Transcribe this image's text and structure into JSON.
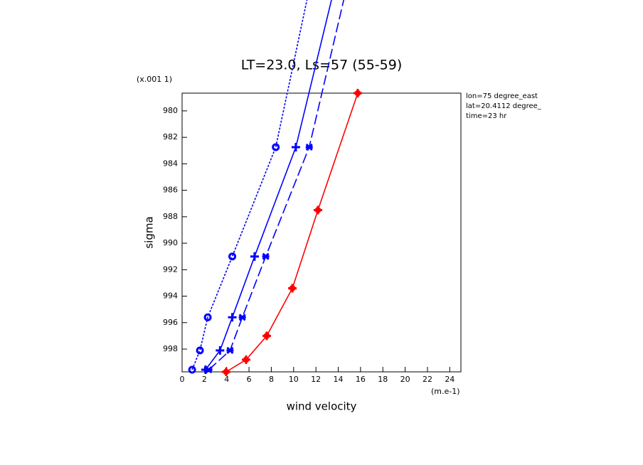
{
  "chart_data": {
    "type": "line",
    "title": "LT=23.0, Ls=57 (55-59)",
    "x_label": "wind velocity",
    "y_label": "sigma",
    "x_units": "(m.e-1)",
    "y_units": "(x.001 1)",
    "annotations": [
      "lon=75 degree_east",
      "lat=20.4112 degree_",
      "time=23 hr"
    ],
    "xlim": [
      0,
      25
    ],
    "ylim": [
      999.72,
      978.66
    ],
    "xticks": [
      0,
      2,
      4,
      6,
      8,
      10,
      12,
      14,
      16,
      18,
      20,
      22,
      24
    ],
    "yticks": [
      980,
      982,
      984,
      986,
      988,
      990,
      992,
      994,
      996,
      998
    ],
    "series": [
      {
        "color": "#0000ff",
        "style": "dotted",
        "marker": "circle",
        "values": [
          0.9,
          1.6,
          2.3,
          4.5,
          8.4,
          11.2
        ],
        "sigma": [
          999.56,
          998.1,
          995.6,
          991.0,
          982.74,
          971.6
        ]
      },
      {
        "color": "#0000ff",
        "style": "solid",
        "marker": "plus",
        "values": [
          2.1,
          3.4,
          4.5,
          6.5,
          10.2,
          13.4
        ],
        "sigma": [
          999.56,
          998.1,
          995.6,
          991.0,
          982.74,
          971.6
        ]
      },
      {
        "color": "#0000ff",
        "style": "dashed",
        "marker": "cross",
        "values": [
          2.4,
          4.3,
          5.4,
          7.5,
          11.4,
          14.5
        ],
        "sigma": [
          999.56,
          998.1,
          995.6,
          991.0,
          982.74,
          971.6
        ]
      },
      {
        "color": "#ff0000",
        "style": "solid",
        "marker": "star",
        "values": [
          3.95,
          5.74,
          7.59,
          9.89,
          12.18,
          15.75
        ],
        "sigma": [
          999.72,
          998.8,
          997.0,
          993.4,
          987.5,
          978.66
        ]
      }
    ]
  }
}
